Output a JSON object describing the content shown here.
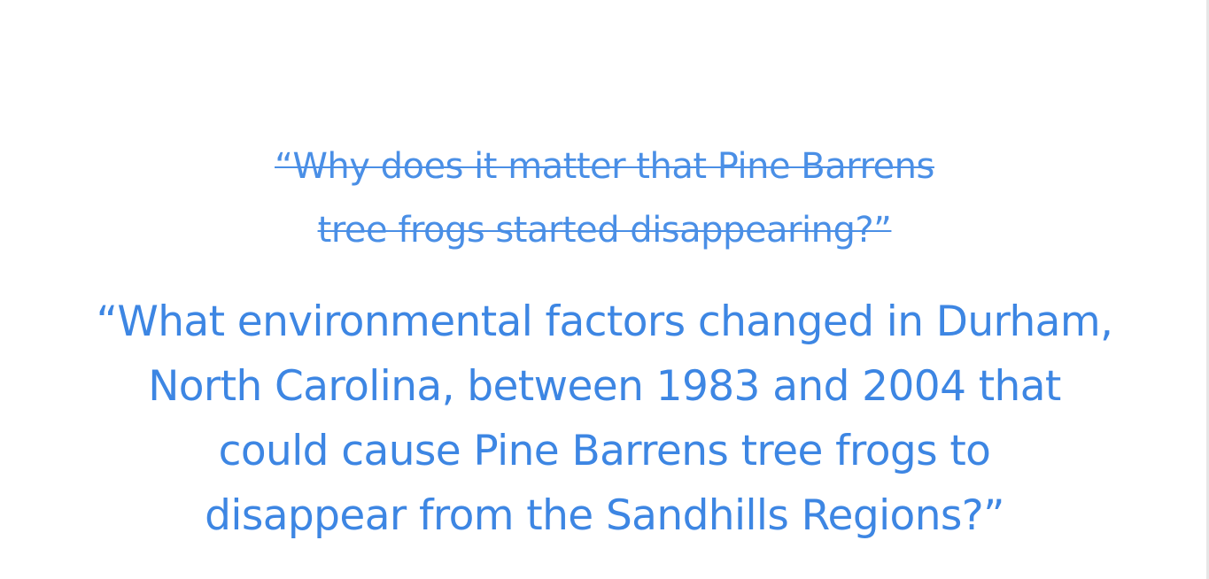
{
  "slide": {
    "original_question": {
      "lines": [
        "“Why does it matter that Pine Barrens",
        "tree frogs started disappearing?”"
      ]
    },
    "refined_question": {
      "lines": [
        "“What environmental factors changed in Durham,",
        "North Carolina, between 1983 and 2004 that",
        "could cause Pine Barrens tree frogs to",
        "disappear from the Sandhills Regions?”"
      ]
    },
    "colors": {
      "text": "#3d86e3",
      "background": "#ffffff"
    }
  }
}
